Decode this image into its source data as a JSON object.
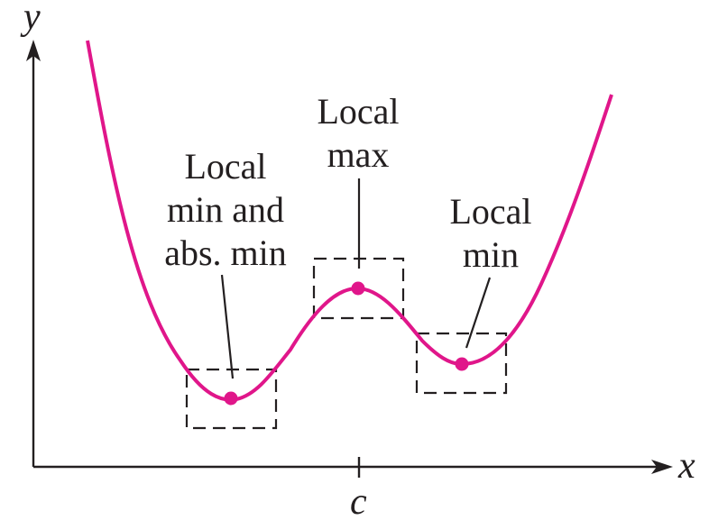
{
  "figure": {
    "axes": {
      "x_label": "x",
      "y_label": "y",
      "tick_label": "c"
    },
    "curve_color": "#e0168a",
    "ink_color": "#231f20",
    "annotations": {
      "local_min_abs": {
        "line1": "Local",
        "line2": "min and",
        "line3": "abs. min"
      },
      "local_max": {
        "line1": "Local",
        "line2": "max"
      },
      "local_min": {
        "line1": "Local",
        "line2": "min"
      }
    }
  }
}
